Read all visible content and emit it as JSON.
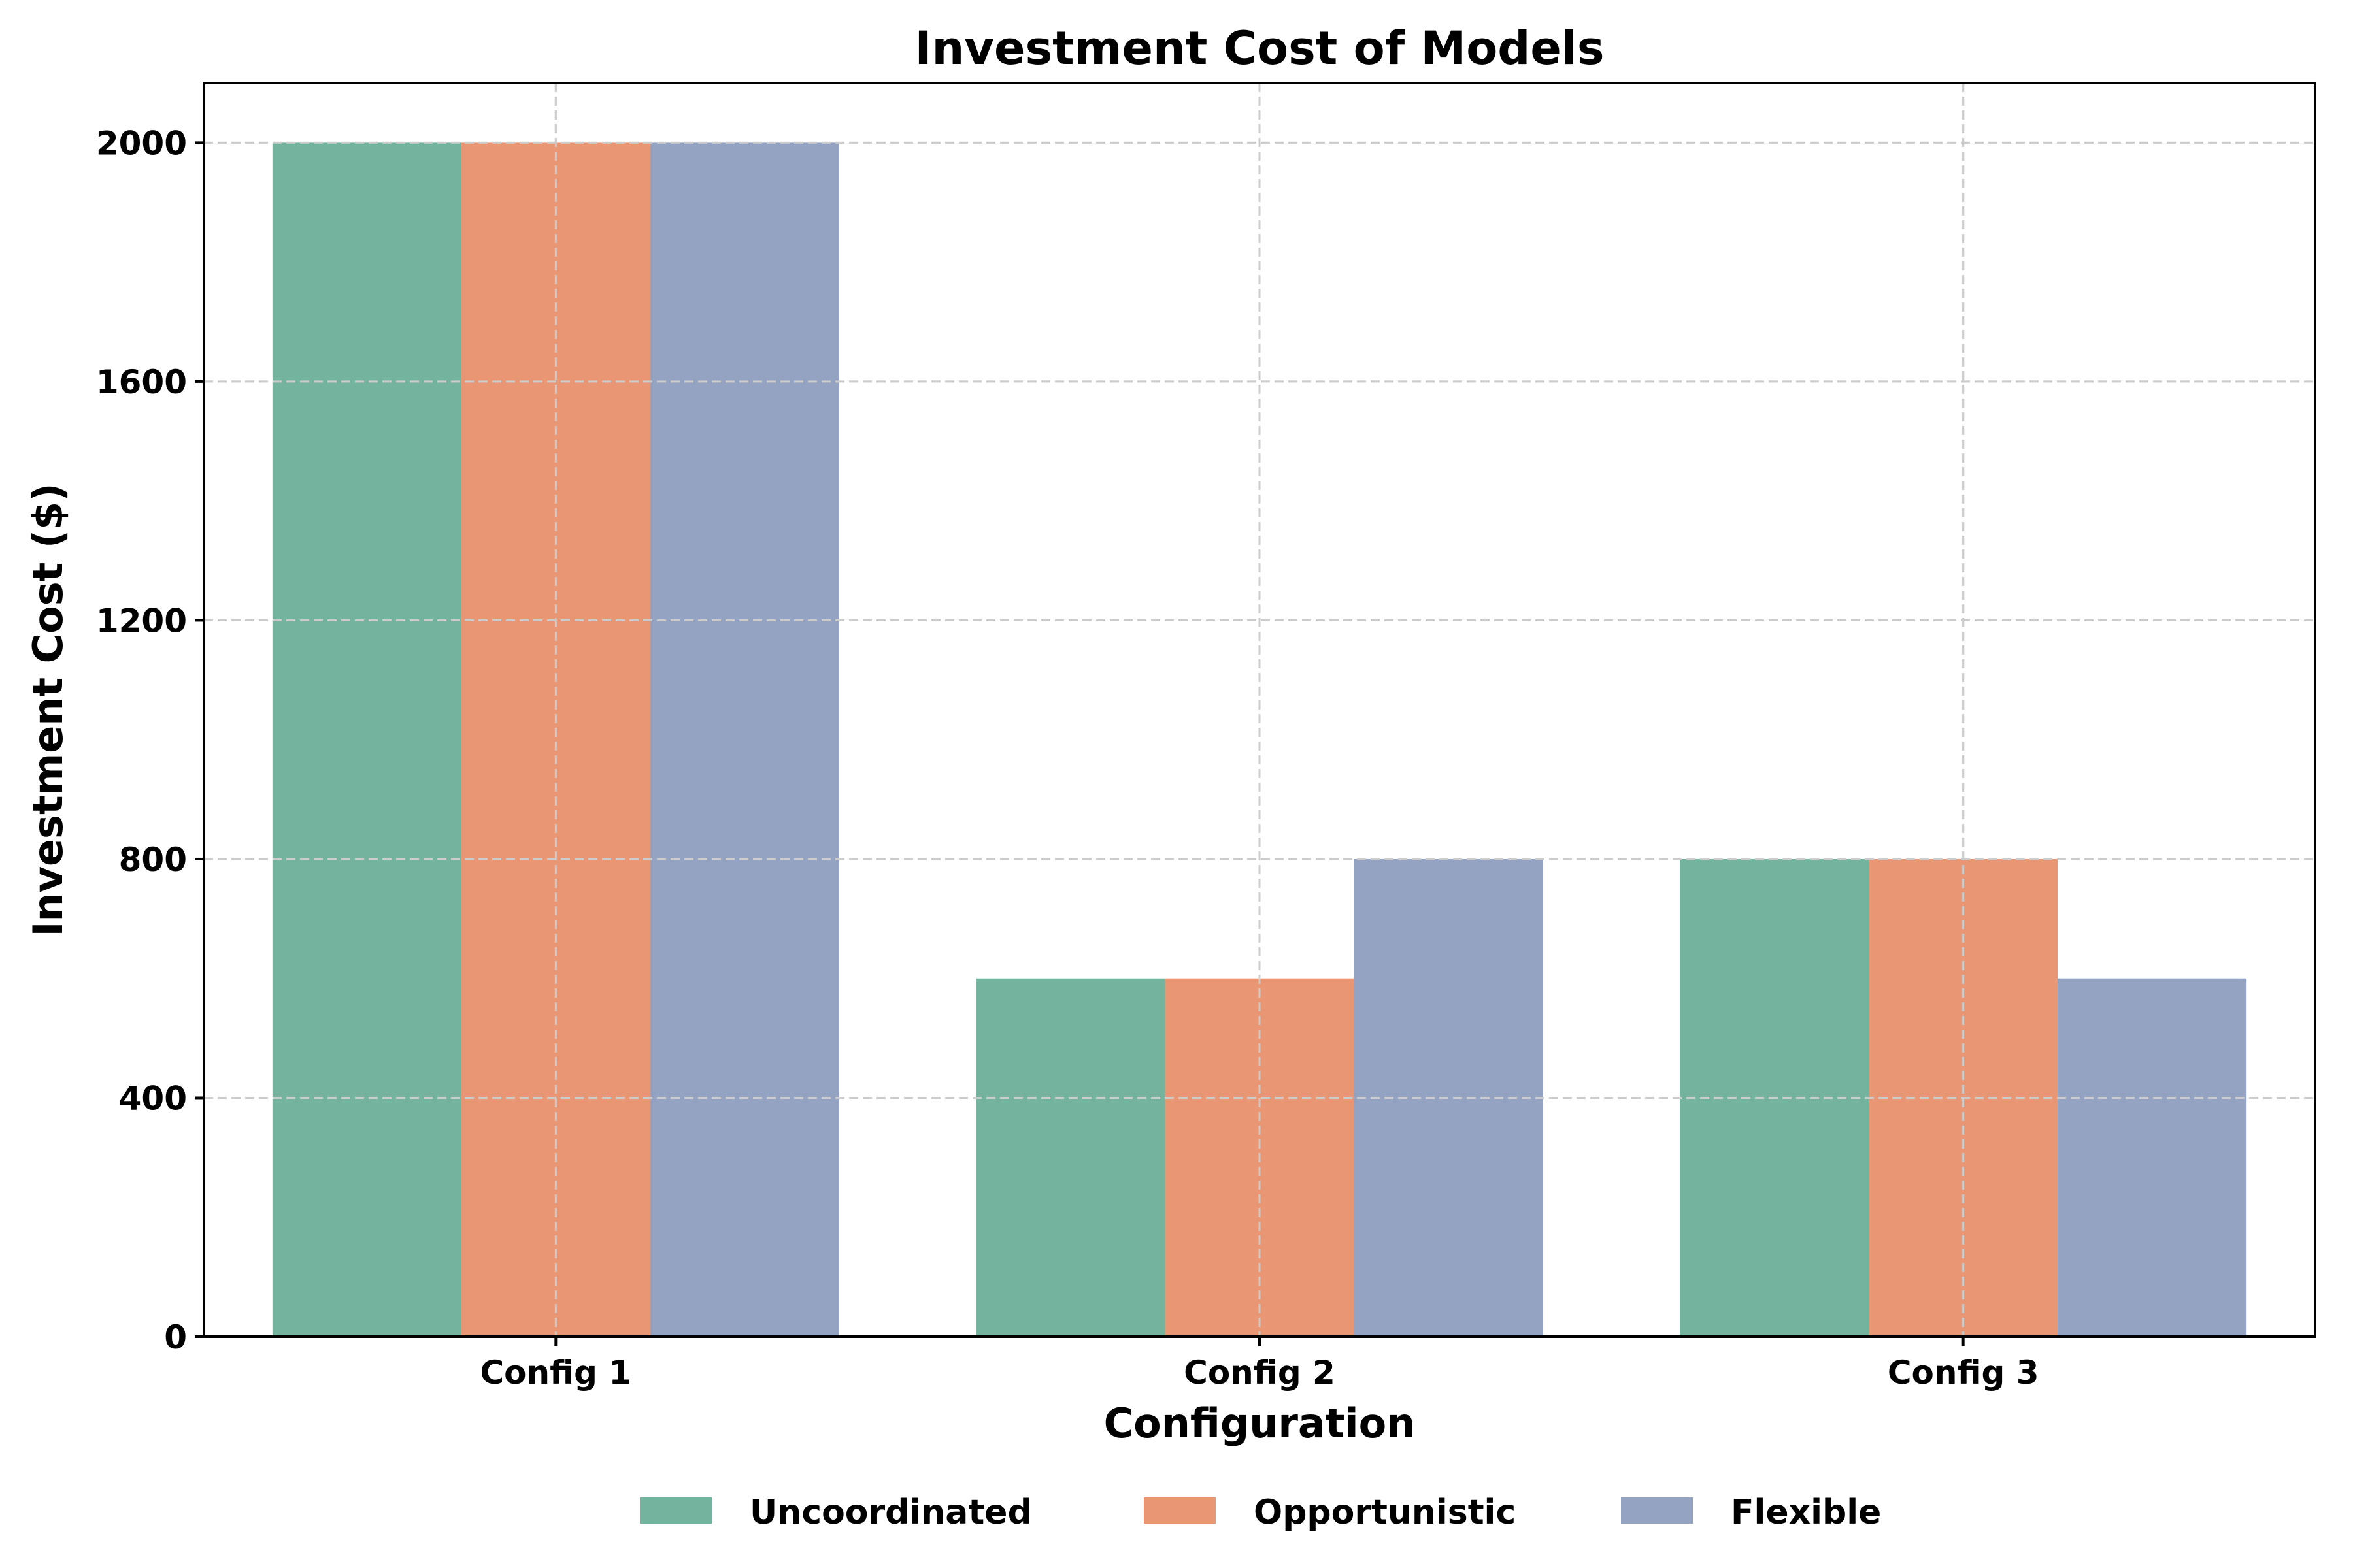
{
  "chart_data": {
    "type": "bar",
    "title": "Investment Cost of Models",
    "xlabel": "Configuration",
    "ylabel": "Investment Cost ($)",
    "categories": [
      "Config 1",
      "Config 2",
      "Config 3"
    ],
    "series": [
      {
        "name": "Uncoordinated",
        "values": [
          2000,
          600,
          800
        ],
        "color": "#74b49f"
      },
      {
        "name": "Opportunistic",
        "values": [
          2000,
          600,
          800
        ],
        "color": "#e89674"
      },
      {
        "name": "Flexible",
        "values": [
          2000,
          800,
          600
        ],
        "color": "#95a3c2"
      }
    ],
    "ylim": [
      0,
      2100
    ],
    "yticks": [
      "0",
      "400",
      "800",
      "1200",
      "1600",
      "2000"
    ],
    "grid": true,
    "legend": "bottom-center"
  }
}
